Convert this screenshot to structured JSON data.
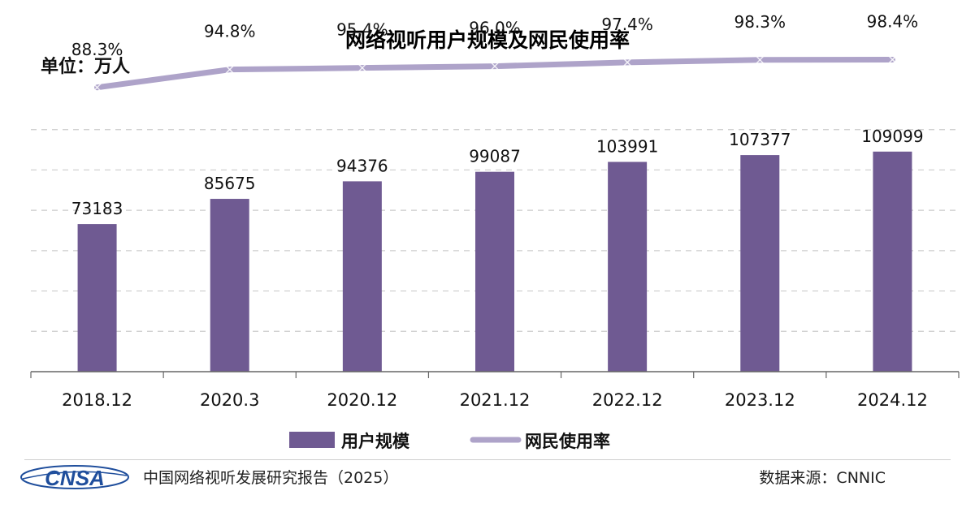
{
  "header": {
    "unit": "单位：万人"
  },
  "chart_data": {
    "type": "bar",
    "title": "网络视听用户规模及网民使用率",
    "categories": [
      "2018.12",
      "2020.3",
      "2020.12",
      "2021.12",
      "2022.12",
      "2023.12",
      "2024.12"
    ],
    "series": [
      {
        "name": "用户规模",
        "type": "bar",
        "values": [
          73183,
          85675,
          94376,
          99087,
          103991,
          107377,
          109099
        ],
        "labels": [
          "73183",
          "85675",
          "94376",
          "99087",
          "103991",
          "107377",
          "109099"
        ],
        "color": "#6f5a92"
      },
      {
        "name": "网民使用率",
        "type": "line",
        "values": [
          88.3,
          94.8,
          95.4,
          96.0,
          97.4,
          98.3,
          98.4
        ],
        "labels": [
          "88.3%",
          "94.8%",
          "95.4%",
          "96.0%",
          "97.4%",
          "98.3%",
          "98.4%"
        ],
        "color": "#aea3c9"
      }
    ],
    "ylim": [
      0,
      140000
    ],
    "grid": true,
    "legend": "bottom"
  },
  "footer": {
    "logo_text": "CNSA",
    "report": "中国网络视听发展研究报告（2025）",
    "source": "数据来源：CNNIC"
  },
  "colors": {
    "bar": "#6f5a92",
    "line": "#aea3c9",
    "grid": "#cccccc",
    "logo": "#1f4e9c"
  }
}
